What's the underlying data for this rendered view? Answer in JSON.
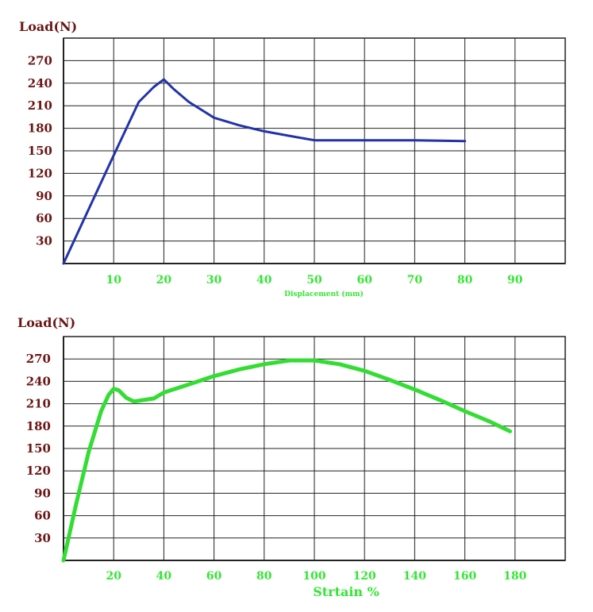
{
  "colors": {
    "title": "#6b1616",
    "ytick": "#6b1616",
    "xtick": "#33e633",
    "grid": "#222222",
    "series1": "#2233aa",
    "series2": "#33dd33"
  },
  "chart_data": [
    {
      "type": "line",
      "title": "",
      "ylabel": "Load(N)",
      "xlabel": "Displacement (mm)",
      "xlim": [
        0,
        100
      ],
      "ylim": [
        0,
        300
      ],
      "xticks": [
        "10",
        "20",
        "30",
        "40",
        "50",
        "60",
        "70",
        "80",
        "90"
      ],
      "yticks": [
        "30",
        "60",
        "90",
        "120",
        "150",
        "180",
        "210",
        "240",
        "270"
      ],
      "grid": true,
      "series": [
        {
          "x": [
            0,
            5,
            10,
            15,
            18,
            20,
            22,
            25,
            30,
            35,
            40,
            45,
            50,
            60,
            70,
            80
          ],
          "y": [
            0,
            72,
            144,
            215,
            235,
            245,
            232,
            215,
            194,
            184,
            176,
            170,
            164,
            164,
            164,
            163
          ]
        }
      ]
    },
    {
      "type": "line",
      "title": "",
      "ylabel": "Load(N)",
      "xlabel": "Strtain %",
      "xlim": [
        0,
        200
      ],
      "ylim": [
        0,
        300
      ],
      "xticks": [
        "20",
        "40",
        "60",
        "80",
        "100",
        "120",
        "140",
        "160",
        "180"
      ],
      "yticks": [
        "30",
        "60",
        "90",
        "120",
        "150",
        "180",
        "210",
        "240",
        "270"
      ],
      "grid": true,
      "series": [
        {
          "x": [
            0,
            5,
            10,
            15,
            18,
            20,
            22,
            25,
            28,
            32,
            36,
            40,
            50,
            60,
            70,
            80,
            90,
            100,
            110,
            120,
            130,
            140,
            150,
            160,
            170,
            178
          ],
          "y": [
            0,
            75,
            145,
            200,
            222,
            230,
            228,
            218,
            213,
            215,
            217,
            225,
            236,
            247,
            256,
            263,
            268,
            268,
            263,
            254,
            242,
            229,
            215,
            200,
            186,
            173
          ]
        }
      ]
    }
  ]
}
